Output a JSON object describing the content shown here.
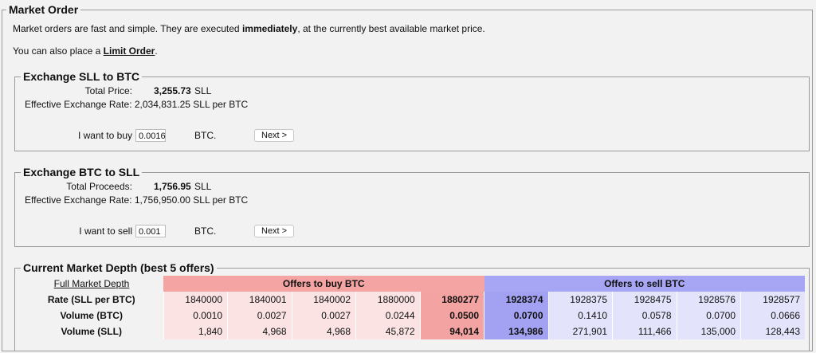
{
  "main": {
    "legend": "Market Order",
    "intro": [
      "Market orders are fast and simple. They are executed",
      "immediately",
      ", at the currently best available market price."
    ],
    "limit": [
      "You can also place a",
      "Limit Order",
      "."
    ],
    "buy": {
      "legend": "Exchange SLL to BTC",
      "total_label": "Total Price:",
      "total_value": "3,255.73",
      "total_unit": "SLL",
      "rate_label": "Effective Exchange Rate:",
      "rate_value": "2,034,831.25",
      "rate_unit": "SLL per BTC",
      "form_label": "I want to buy",
      "amount": "0.0016",
      "unit": "BTC.",
      "button": "Next >"
    },
    "sell": {
      "legend": "Exchange BTC to SLL",
      "total_label": "Total Proceeds:",
      "total_value": "1,756.95",
      "total_unit": "SLL",
      "rate_label": "Effective Exchange Rate:",
      "rate_value": "1,756,950.00",
      "rate_unit": "SLL per BTC",
      "form_label": "I want to sell",
      "amount": "0.001",
      "unit": "BTC.",
      "button": "Next >"
    },
    "depth": {
      "legend": "Current Market Depth (best 5 offers)",
      "link": "Full Market Depth",
      "buy_header": "Offers to buy BTC",
      "sell_header": "Offers to sell BTC",
      "rows": [
        {
          "label": "Rate (SLL per BTC)",
          "buy": [
            "1840000",
            "1840001",
            "1840002",
            "1880000",
            "1880277"
          ],
          "sell": [
            "1928374",
            "1928375",
            "1928475",
            "1928576",
            "1928577"
          ]
        },
        {
          "label": "Volume (BTC)",
          "buy": [
            "0.0010",
            "0.0027",
            "0.0027",
            "0.0244",
            "0.0500"
          ],
          "sell": [
            "0.0700",
            "0.1410",
            "0.0578",
            "0.0700",
            "0.0666"
          ]
        },
        {
          "label": "Volume (SLL)",
          "buy": [
            "1,840",
            "4,968",
            "4,968",
            "45,872",
            "94,014"
          ],
          "sell": [
            "134,986",
            "271,901",
            "111,466",
            "135,000",
            "128,443"
          ]
        }
      ]
    }
  }
}
